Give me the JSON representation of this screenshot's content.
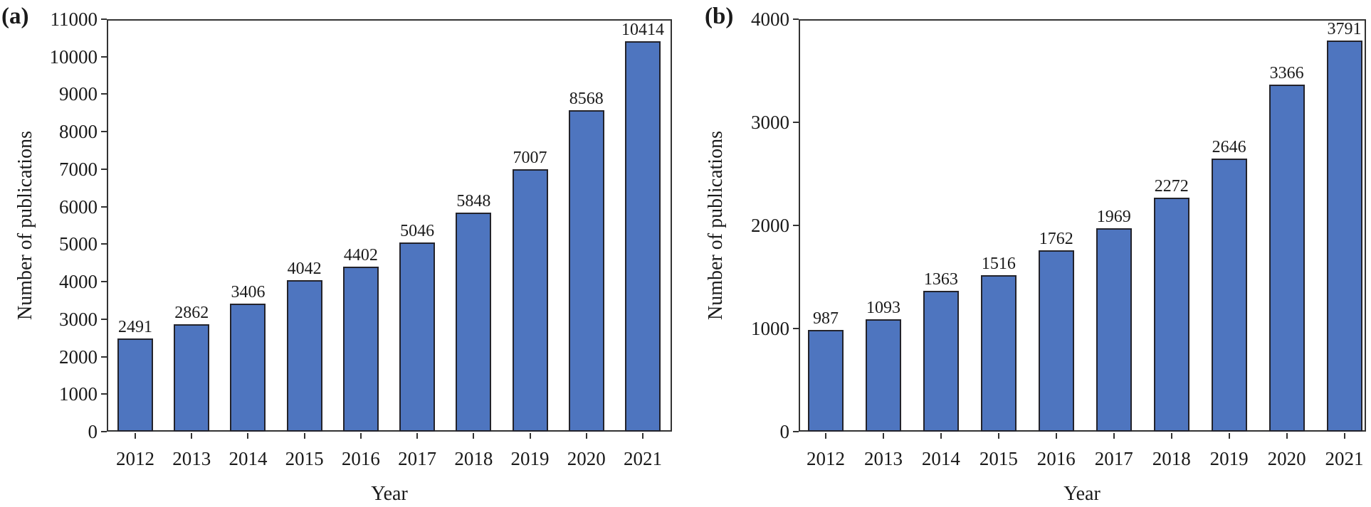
{
  "figure": {
    "background": "#FFFFFF",
    "text_color": "#1A1A1A",
    "axis_color": "#333333"
  },
  "chart_data": [
    {
      "type": "bar",
      "panel_label": "(a)",
      "categories": [
        "2012",
        "2013",
        "2014",
        "2015",
        "2016",
        "2017",
        "2018",
        "2019",
        "2020",
        "2021"
      ],
      "values": [
        2491,
        2862,
        3406,
        4042,
        4402,
        5046,
        5848,
        7007,
        8568,
        10414
      ],
      "xlabel": "Year",
      "ylabel": "Number of publications",
      "ylim": [
        0,
        11000
      ],
      "yticks": [
        0,
        1000,
        2000,
        3000,
        4000,
        5000,
        6000,
        7000,
        8000,
        9000,
        10000,
        11000
      ],
      "grid": false,
      "legend": false,
      "bar_color": "#4E75BF",
      "bar_edge_color": "#23232B"
    },
    {
      "type": "bar",
      "panel_label": "(b)",
      "categories": [
        "2012",
        "2013",
        "2014",
        "2015",
        "2016",
        "2017",
        "2018",
        "2019",
        "2020",
        "2021"
      ],
      "values": [
        987,
        1093,
        1363,
        1516,
        1762,
        1969,
        2272,
        2646,
        3366,
        3791
      ],
      "xlabel": "Year",
      "ylabel": "Number of publications",
      "ylim": [
        0,
        4000
      ],
      "yticks": [
        0,
        1000,
        2000,
        3000,
        4000
      ],
      "grid": false,
      "legend": false,
      "bar_color": "#4E75BF",
      "bar_edge_color": "#23232B"
    }
  ]
}
